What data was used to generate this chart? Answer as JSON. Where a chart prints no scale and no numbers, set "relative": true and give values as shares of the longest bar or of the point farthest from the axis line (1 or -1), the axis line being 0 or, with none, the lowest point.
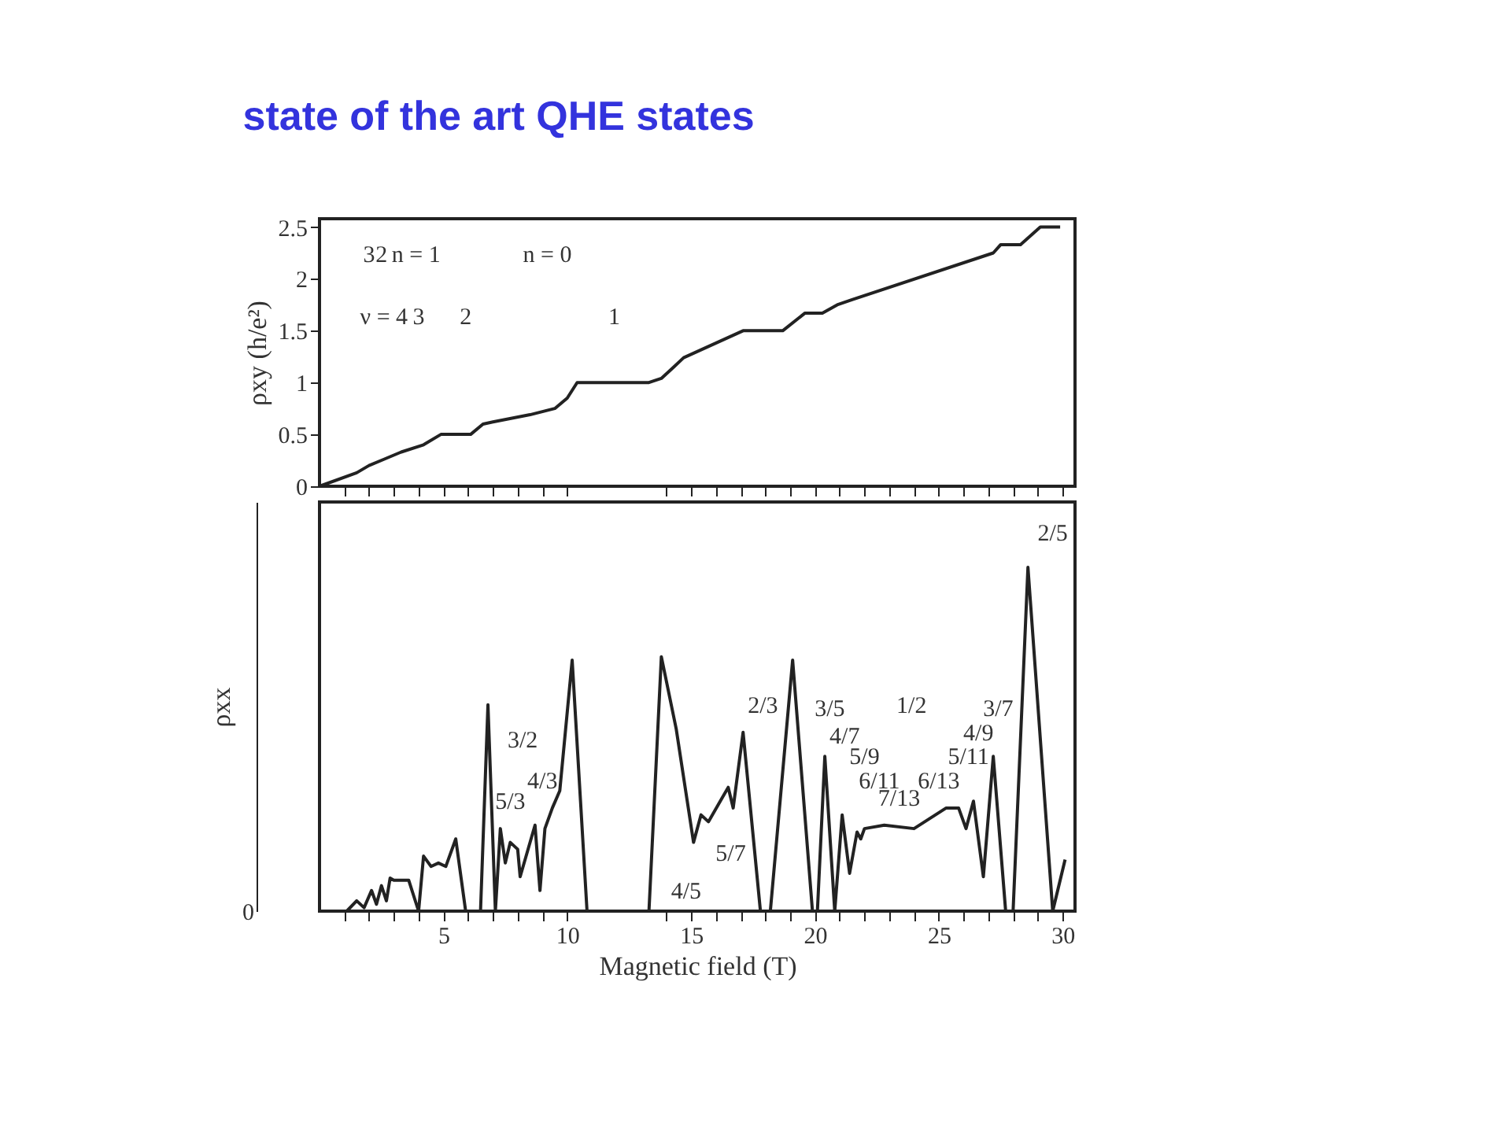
{
  "chart_data": [
    {
      "type": "line",
      "title": "state of the art QHE states",
      "ylabel": "ρxy (h/e²)",
      "xlim": [
        0,
        30.5
      ],
      "ylim": [
        0,
        2.58
      ],
      "xticks": [
        {
          "value": 1,
          "label": null
        },
        {
          "value": 2,
          "label": null
        },
        {
          "value": 3,
          "label": null
        },
        {
          "value": 4,
          "label": null
        },
        {
          "value": 5,
          "label": null
        },
        {
          "value": 6,
          "label": null
        },
        {
          "value": 7,
          "label": null
        },
        {
          "value": 8,
          "label": null
        },
        {
          "value": 9,
          "label": null
        },
        {
          "value": 10,
          "label": null
        },
        {
          "value": 14,
          "label": null
        },
        {
          "value": 15,
          "label": null
        },
        {
          "value": 16,
          "label": null
        },
        {
          "value": 17,
          "label": null
        },
        {
          "value": 18,
          "label": null
        },
        {
          "value": 19,
          "label": null
        },
        {
          "value": 20,
          "label": null
        },
        {
          "value": 21,
          "label": null
        },
        {
          "value": 22,
          "label": null
        },
        {
          "value": 23,
          "label": null
        },
        {
          "value": 24,
          "label": null
        },
        {
          "value": 25,
          "label": null
        },
        {
          "value": 26,
          "label": null
        },
        {
          "value": 27,
          "label": null
        },
        {
          "value": 28,
          "label": null
        },
        {
          "value": 29,
          "label": null
        },
        {
          "value": 30,
          "label": null
        }
      ],
      "yticks": [
        0,
        0.5,
        1,
        1.5,
        2,
        2.5
      ],
      "tick_labels": "y",
      "grid": false,
      "line_style": "solid",
      "marker": "none",
      "series": [
        {
          "color": "#222222",
          "x": [
            0,
            1.5,
            2.0,
            2.6,
            3.3,
            4.2,
            4.9,
            6.1,
            6.6,
            7.0,
            8.5,
            9.5,
            10.0,
            10.4,
            13.3,
            13.8,
            14.3,
            14.7,
            17.1,
            18.7,
            19.6,
            20.3,
            20.9,
            21.5,
            27.2,
            27.5,
            28.3,
            29.1,
            29.9
          ],
          "values": [
            0,
            0.13,
            0.2,
            0.26,
            0.33,
            0.4,
            0.5,
            0.5,
            0.6,
            0.62,
            0.69,
            0.75,
            0.85,
            1.0,
            1.0,
            1.04,
            1.15,
            1.24,
            1.5,
            1.5,
            1.67,
            1.67,
            1.75,
            1.8,
            2.25,
            2.33,
            2.33,
            2.5,
            2.5
          ]
        }
      ],
      "annotations": [
        "3",
        "2",
        "n = 1",
        "n = 0",
        "ν = 4",
        "3",
        "2",
        "1"
      ]
    },
    {
      "type": "line",
      "xlabel": "Magnetic field (T)",
      "ylabel": "ρxx",
      "relative": true,
      "xlim": [
        0,
        30.5
      ],
      "xticks": [
        {
          "value": 1,
          "label": null
        },
        {
          "value": 2,
          "label": null
        },
        {
          "value": 3,
          "label": null
        },
        {
          "value": 4,
          "label": null
        },
        5,
        {
          "value": 6,
          "label": null
        },
        {
          "value": 7,
          "label": null
        },
        {
          "value": 8,
          "label": null
        },
        {
          "value": 9,
          "label": null
        },
        10,
        {
          "value": 14,
          "label": null
        },
        15,
        {
          "value": 16,
          "label": null
        },
        {
          "value": 17,
          "label": null
        },
        {
          "value": 18,
          "label": null
        },
        {
          "value": 19,
          "label": null
        },
        20,
        {
          "value": 21,
          "label": null
        },
        {
          "value": 22,
          "label": null
        },
        {
          "value": 23,
          "label": null
        },
        {
          "value": 24,
          "label": null
        },
        25,
        {
          "value": 26,
          "label": null
        },
        {
          "value": 27,
          "label": null
        },
        {
          "value": 28,
          "label": null
        },
        {
          "value": 29,
          "label": null
        },
        30
      ],
      "grid": false,
      "line_style": "solid",
      "marker": "none",
      "series": [
        {
          "color": "#222222",
          "x": [
            0,
            1.1,
            1.5,
            1.8,
            2.1,
            2.3,
            2.5,
            2.7,
            2.85,
            3.0,
            3.6,
            4.0,
            4.2,
            4.5,
            4.8,
            5.1,
            5.5,
            5.9,
            6.5,
            6.8,
            7.1,
            7.3,
            7.5,
            7.7,
            8.0,
            8.1,
            8.7,
            8.9,
            9.1,
            9.4,
            9.7,
            10.2,
            10.8,
            13.3,
            13.8,
            14.4,
            15.1,
            15.4,
            15.7,
            16.5,
            16.7,
            17.1,
            17.8,
            18.2,
            19.1,
            19.9,
            20.1,
            20.4,
            20.8,
            21.1,
            21.4,
            21.7,
            21.85,
            22.0,
            22.8,
            24.0,
            25.3,
            25.8,
            26.1,
            26.4,
            26.8,
            27.2,
            27.7,
            28.0,
            28.6,
            29.6,
            30.1
          ],
          "values": [
            0,
            0,
            0.03,
            0.01,
            0.06,
            0.02,
            0.074,
            0.03,
            0.096,
            0.09,
            0.09,
            0,
            0.16,
            0.13,
            0.14,
            0.13,
            0.21,
            0,
            0,
            0.6,
            0,
            0.24,
            0.14,
            0.2,
            0.18,
            0.1,
            0.25,
            0.06,
            0.24,
            0.3,
            0.35,
            0.73,
            0,
            0,
            0.74,
            0.53,
            0.2,
            0.28,
            0.26,
            0.36,
            0.3,
            0.52,
            0,
            0,
            0.73,
            0,
            0,
            0.45,
            0,
            0.28,
            0.11,
            0.23,
            0.21,
            0.24,
            0.25,
            0.24,
            0.3,
            0.3,
            0.24,
            0.32,
            0.1,
            0.45,
            0,
            0,
            1.0,
            0,
            0.15
          ]
        }
      ],
      "annotations": [
        "0",
        "3/2",
        "4/3",
        "5/3",
        "2/3",
        "3/5",
        "1/2",
        "4/7",
        "5/9",
        "6/11",
        "7/13",
        "6/13",
        "5/11",
        "4/9",
        "3/7",
        "2/5",
        "4/5",
        "5/7"
      ]
    }
  ]
}
